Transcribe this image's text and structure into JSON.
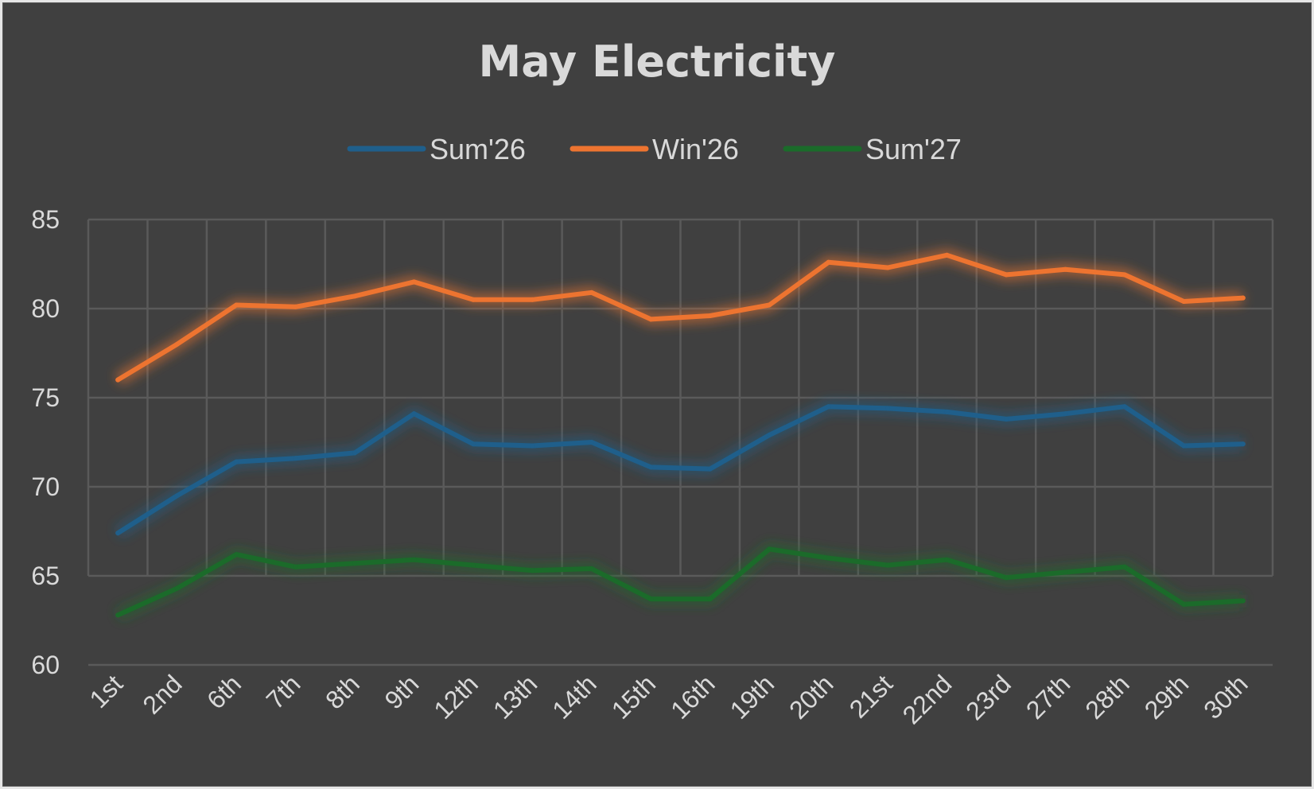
{
  "chart_data": {
    "type": "line",
    "title": "May Electricity",
    "xlabel": "",
    "ylabel": "",
    "categories": [
      "1st",
      "2nd",
      "6th",
      "7th",
      "8th",
      "9th",
      "12th",
      "13th",
      "14th",
      "15th",
      "16th",
      "19th",
      "20th",
      "21st",
      "22nd",
      "23rd",
      "27th",
      "28th",
      "29th",
      "30th"
    ],
    "ylim": [
      60,
      85
    ],
    "yticks": [
      "60",
      "65",
      "70",
      "75",
      "80",
      "85"
    ],
    "grid": true,
    "legend_position": "top",
    "series": [
      {
        "name": "Sum'26",
        "color": "#1f5f8b",
        "values": [
          67.4,
          69.5,
          71.4,
          71.6,
          71.9,
          74.1,
          72.4,
          72.3,
          72.5,
          71.1,
          71.0,
          72.9,
          74.5,
          74.4,
          74.2,
          73.8,
          74.1,
          74.5,
          72.3,
          72.4
        ]
      },
      {
        "name": "Win'26",
        "color": "#ed7430",
        "values": [
          76.0,
          78.0,
          80.2,
          80.1,
          80.7,
          81.5,
          80.5,
          80.5,
          80.9,
          79.4,
          79.6,
          80.2,
          82.6,
          82.3,
          83.0,
          81.9,
          82.2,
          81.9,
          80.4,
          80.6
        ]
      },
      {
        "name": "Sum'27",
        "color": "#1b6b2a",
        "values": [
          62.8,
          64.3,
          66.2,
          65.5,
          65.7,
          65.9,
          65.6,
          65.3,
          65.4,
          63.7,
          63.7,
          66.5,
          66.0,
          65.6,
          65.9,
          64.9,
          65.2,
          65.5,
          63.4,
          63.6
        ]
      }
    ]
  }
}
